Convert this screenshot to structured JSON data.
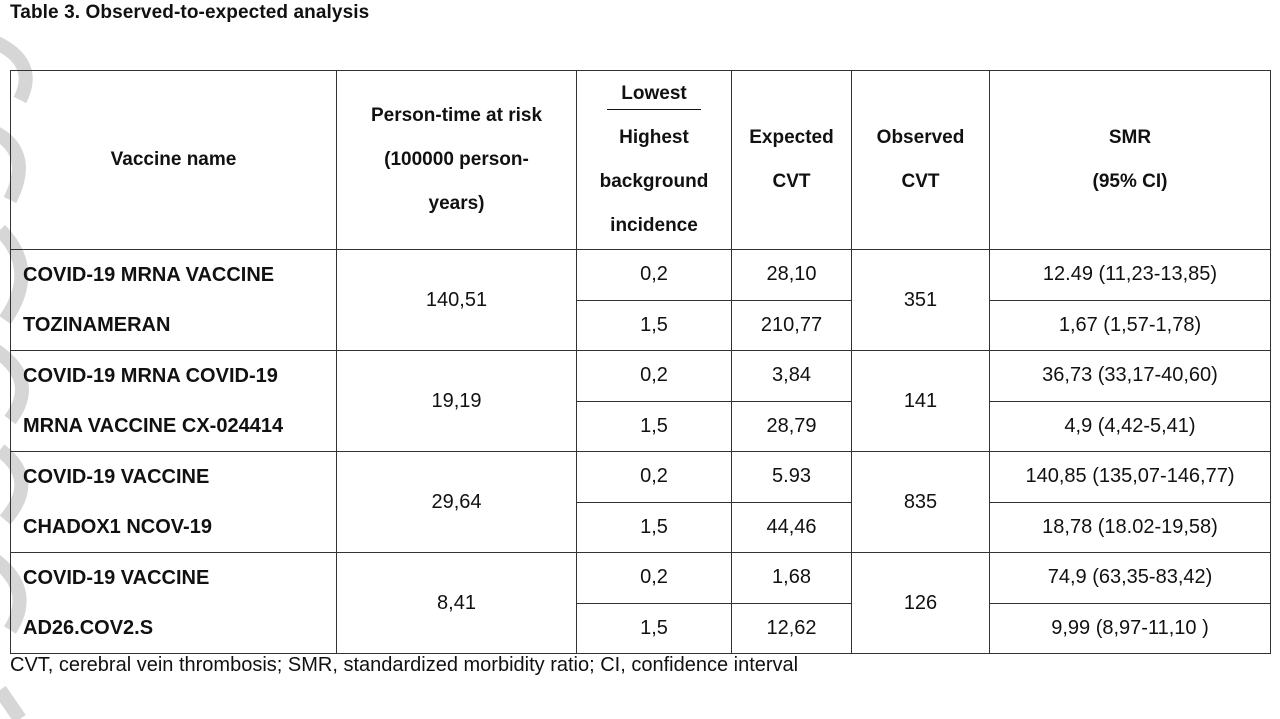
{
  "title": "Table 3. Observed-to-expected analysis",
  "headers": {
    "vaccine": "Vaccine name",
    "person_time": [
      "Person-time at risk",
      "(100000 person-",
      "years)"
    ],
    "incidence_top": "Lowest",
    "incidence_bottom": [
      "Highest",
      "background",
      "incidence"
    ],
    "expected": [
      "Expected",
      "CVT"
    ],
    "observed": [
      "Observed",
      "CVT"
    ],
    "smr": [
      "SMR",
      "(95% CI)"
    ]
  },
  "rows": [
    {
      "name": [
        "COVID-19 MRNA VACCINE",
        "TOZINAMERAN"
      ],
      "person_time": "140,51",
      "observed": "351",
      "sub": [
        {
          "incidence": "0,2",
          "expected": "28,10",
          "smr": "12.49 (11,23-13,85)"
        },
        {
          "incidence": "1,5",
          "expected": "210,77",
          "smr": "1,67 (1,57-1,78)"
        }
      ]
    },
    {
      "name": [
        "COVID-19 MRNA COVID-19",
        "MRNA VACCINE CX-024414"
      ],
      "person_time": "19,19",
      "observed": "141",
      "sub": [
        {
          "incidence": "0,2",
          "expected": "3,84",
          "smr": "36,73 (33,17-40,60)"
        },
        {
          "incidence": "1,5",
          "expected": "28,79",
          "smr": "4,9 (4,42-5,41)"
        }
      ]
    },
    {
      "name": [
        "COVID-19 VACCINE",
        "CHADOX1 NCOV-19"
      ],
      "person_time": "29,64",
      "observed": "835",
      "sub": [
        {
          "incidence": "0,2",
          "expected": "5.93",
          "smr": "140,85 (135,07-146,77)"
        },
        {
          "incidence": "1,5",
          "expected": "44,46",
          "smr": "18,78 (18.02-19,58)"
        }
      ]
    },
    {
      "name": [
        "COVID-19 VACCINE",
        "AD26.COV2.S"
      ],
      "person_time": "8,41",
      "observed": "126",
      "sub": [
        {
          "incidence": "0,2",
          "expected": "1,68",
          "smr": "74,9 (63,35-83,42)"
        },
        {
          "incidence": "1,5",
          "expected": "12,62",
          "smr": "9,99 (8,97-11,10 )"
        }
      ]
    }
  ],
  "footnote": "CVT, cerebral vein thrombosis; SMR, standardized morbidity ratio; CI, confidence interval"
}
